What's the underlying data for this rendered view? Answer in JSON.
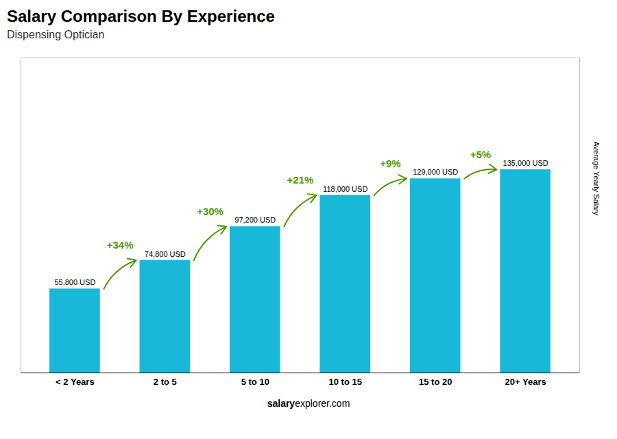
{
  "chart_data": {
    "type": "bar",
    "title": "Salary Comparison By Experience",
    "subtitle": "Dispensing Optician",
    "categories": [
      "< 2 Years",
      "2 to 5",
      "5 to 10",
      "10 to 15",
      "15 to 20",
      "20+ Years"
    ],
    "values": [
      55800,
      74800,
      97200,
      118000,
      129000,
      135000
    ],
    "value_labels": [
      "55,800 USD",
      "74,800 USD",
      "97,200 USD",
      "118,000 USD",
      "129,000 USD",
      "135,000 USD"
    ],
    "data_labels": true,
    "annotations": [
      "+34%",
      "+30%",
      "+21%",
      "+9%",
      "+5%"
    ],
    "ylabel": "Average Yearly Salary",
    "website_bold": "salary",
    "website_regular": "explorer.com",
    "color": "#1ab8d8",
    "ylim": [
      0,
      209250
    ],
    "tick_labels": "x",
    "grid": false
  }
}
